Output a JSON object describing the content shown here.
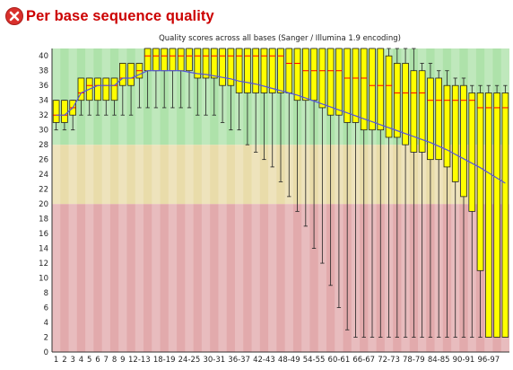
{
  "module": {
    "title": "Per base sequence quality",
    "status": "fail",
    "status_icon": "fail-cross-icon",
    "status_color": "#d9302c"
  },
  "colors": {
    "good_band": "#aee2aa",
    "warn_band": "#e9dcaa",
    "poor_band": "#e2aaac",
    "box_fill": "#ffff00",
    "median_line": "#ff0000",
    "mean_line": "#5555dd",
    "title_red": "#cc0000"
  },
  "chart_data": {
    "type": "box",
    "title": "Quality scores across all bases (Sanger / Illumina 1.9 encoding)",
    "ylim": [
      0,
      41
    ],
    "y_ticks": [
      0,
      2,
      4,
      6,
      8,
      10,
      12,
      14,
      16,
      18,
      20,
      22,
      24,
      26,
      28,
      30,
      32,
      34,
      36,
      38,
      40
    ],
    "bands": [
      {
        "name": "poor",
        "from": 0,
        "to": 20
      },
      {
        "name": "reasonable",
        "from": 20,
        "to": 28
      },
      {
        "name": "good",
        "from": 28,
        "to": 41
      }
    ],
    "grid": false,
    "categories": [
      "1",
      "2",
      "3",
      "4",
      "5",
      "6",
      "7",
      "8",
      "9",
      "10-11",
      "12-13",
      "14-15",
      "16-17",
      "18-19",
      "20-21",
      "22-23",
      "24-25",
      "26-27",
      "28-29",
      "30-31",
      "32-33",
      "34-35",
      "36-37",
      "38-39",
      "40-41",
      "42-43",
      "44-45",
      "46-47",
      "48-49",
      "50-51",
      "52-53",
      "54-55",
      "56-57",
      "58-59",
      "60-61",
      "62-63",
      "64-65",
      "66-67",
      "68-69",
      "70-71",
      "72-73",
      "74-75",
      "76-77",
      "78-79",
      "80-81",
      "82-83",
      "84-85",
      "86-87",
      "88-89",
      "90-91",
      "92-93",
      "94-95",
      "96-97",
      "98-99",
      "100"
    ],
    "x_tick_labels": [
      "1",
      "2",
      "3",
      "4",
      "5",
      "6",
      "7",
      "8",
      "9",
      "12-13",
      "18-19",
      "24-25",
      "30-31",
      "36-37",
      "42-43",
      "48-49",
      "54-55",
      "60-61",
      "66-67",
      "72-73",
      "78-79",
      "84-85",
      "90-91",
      "96-97"
    ],
    "series": [
      {
        "name": "lower whisker",
        "values": [
          30,
          30,
          30,
          32,
          32,
          32,
          32,
          32,
          32,
          32,
          33,
          33,
          33,
          33,
          33,
          33,
          33,
          32,
          32,
          32,
          31,
          30,
          30,
          28,
          27,
          26,
          25,
          23,
          21,
          19,
          17,
          14,
          12,
          9,
          6,
          3,
          2,
          2,
          2,
          2,
          2,
          2,
          2,
          2,
          2,
          2,
          2,
          2,
          2,
          2,
          2,
          2,
          2,
          2,
          2
        ]
      },
      {
        "name": "lower quartile",
        "values": [
          31,
          31,
          32,
          34,
          34,
          34,
          34,
          34,
          36,
          36,
          37,
          38,
          38,
          38,
          38,
          38,
          38,
          37,
          37,
          37,
          36,
          36,
          35,
          35,
          35,
          35,
          35,
          35,
          35,
          34,
          34,
          34,
          33,
          32,
          32,
          31,
          31,
          30,
          30,
          30,
          29,
          29,
          28,
          27,
          27,
          26,
          26,
          25,
          23,
          21,
          19,
          11,
          2,
          2,
          2
        ]
      },
      {
        "name": "median",
        "values": [
          32,
          32,
          33,
          35,
          36,
          36,
          36,
          36,
          37,
          37,
          38,
          40,
          40,
          40,
          40,
          40,
          40,
          40,
          40,
          40,
          40,
          40,
          40,
          40,
          40,
          40,
          40,
          40,
          39,
          39,
          38,
          38,
          38,
          38,
          38,
          37,
          37,
          37,
          36,
          36,
          36,
          35,
          35,
          35,
          35,
          34,
          34,
          34,
          34,
          34,
          34,
          33,
          33,
          33,
          33
        ]
      },
      {
        "name": "upper quartile",
        "values": [
          34,
          34,
          34,
          37,
          37,
          37,
          37,
          37,
          39,
          39,
          39,
          41,
          41,
          41,
          41,
          41,
          41,
          41,
          41,
          41,
          41,
          41,
          41,
          41,
          41,
          41,
          41,
          41,
          41,
          41,
          41,
          41,
          41,
          41,
          41,
          41,
          41,
          41,
          41,
          41,
          40,
          39,
          39,
          38,
          38,
          37,
          37,
          36,
          36,
          36,
          35,
          35,
          35,
          35,
          35
        ]
      },
      {
        "name": "upper whisker",
        "values": [
          34,
          34,
          34,
          37,
          37,
          37,
          37,
          37,
          39,
          39,
          39,
          41,
          41,
          41,
          41,
          41,
          41,
          41,
          41,
          41,
          41,
          41,
          41,
          41,
          41,
          41,
          41,
          41,
          41,
          41,
          41,
          41,
          41,
          41,
          41,
          41,
          41,
          41,
          41,
          41,
          41,
          41,
          41,
          41,
          39,
          39,
          38,
          38,
          37,
          37,
          36,
          36,
          36,
          36,
          36
        ]
      },
      {
        "name": "mean",
        "values": [
          32,
          32,
          33,
          35,
          35.5,
          36,
          36,
          36,
          37,
          37,
          37.5,
          38,
          38,
          38,
          38,
          38,
          37.8,
          37.6,
          37.5,
          37.3,
          37.1,
          36.9,
          36.6,
          36.4,
          36.2,
          35.9,
          35.6,
          35.3,
          35,
          34.7,
          34.3,
          33.9,
          33.5,
          33.1,
          32.7,
          32.3,
          31.9,
          31.5,
          31.1,
          30.7,
          30.3,
          29.9,
          29.5,
          29.1,
          28.7,
          28.3,
          27.8,
          27.3,
          26.7,
          26.1,
          25.5,
          24.9,
          24.2,
          23.5,
          22.8
        ]
      }
    ]
  }
}
